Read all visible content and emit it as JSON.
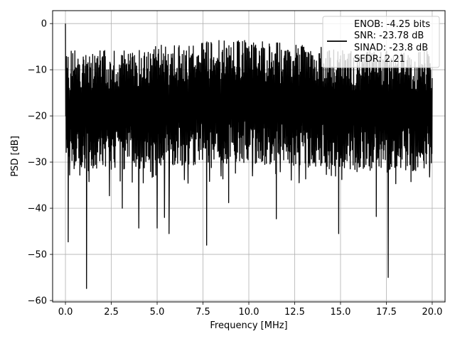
{
  "chart_data": {
    "type": "line",
    "title": "",
    "xlabel": "Frequency [MHz]",
    "ylabel": "PSD [dB]",
    "xlim": [
      -0.7,
      20.7
    ],
    "ylim": [
      -60.3,
      2.8
    ],
    "xticks": [
      0.0,
      2.5,
      5.0,
      7.5,
      10.0,
      12.5,
      15.0,
      17.5,
      20.0
    ],
    "xtick_labels": [
      "0.0",
      "2.5",
      "5.0",
      "7.5",
      "10.0",
      "12.5",
      "15.0",
      "17.5",
      "20.0"
    ],
    "yticks": [
      0,
      -10,
      -20,
      -30,
      -40,
      -50,
      -60
    ],
    "ytick_labels": [
      "0",
      "−10",
      "−20",
      "−30",
      "−40",
      "−50",
      "−60"
    ],
    "grid": true,
    "legend_position": "top-right",
    "legend_lines": [
      "ENOB: -4.25 bits",
      "SNR: -23.78 dB",
      "SINAD: -23.8 dB",
      "SFDR: 2.21"
    ],
    "line_color": "#000000",
    "series": [
      {
        "noise_description": "dense noise-like PSD across 0-20 MHz, typical envelope between about -6 dB and -33 dB",
        "x_range": [
          0.0,
          20.0
        ],
        "peak": {
          "x": 0.0,
          "y": 0.0
        },
        "notable_dips": [
          {
            "x": 0.15,
            "y": -47.3
          },
          {
            "x": 1.15,
            "y": -57.4
          },
          {
            "x": 4.0,
            "y": -44.3
          },
          {
            "x": 5.0,
            "y": -44.3
          },
          {
            "x": 5.4,
            "y": -42.0
          },
          {
            "x": 5.65,
            "y": -45.5
          },
          {
            "x": 7.7,
            "y": -48.0
          },
          {
            "x": 8.9,
            "y": -38.8
          },
          {
            "x": 11.5,
            "y": -42.3
          },
          {
            "x": 14.9,
            "y": -45.5
          },
          {
            "x": 16.95,
            "y": -41.8
          },
          {
            "x": 17.6,
            "y": -55.0
          },
          {
            "x": 2.4,
            "y": -37.3
          },
          {
            "x": 3.1,
            "y": -40.0
          }
        ]
      }
    ]
  }
}
